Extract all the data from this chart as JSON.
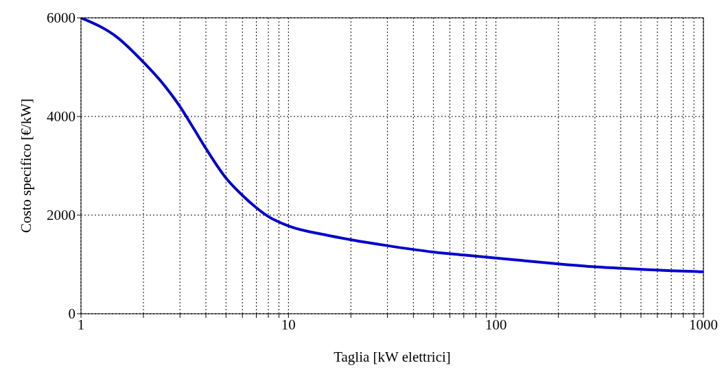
{
  "chart_data": {
    "type": "line",
    "xlabel": "Taglia [kW elettrici]",
    "ylabel": "Costo specifico [€/kW]",
    "x": [
      1,
      1.5,
      2,
      2.5,
      3,
      3.5,
      4,
      5,
      6,
      7,
      8,
      10,
      15,
      20,
      30,
      50,
      70,
      100,
      200,
      300,
      500,
      700,
      1000
    ],
    "series": [
      {
        "color": "#0000cc",
        "values": [
          6000,
          5600,
          5100,
          4650,
          4200,
          3750,
          3350,
          2750,
          2400,
          2150,
          1970,
          1780,
          1600,
          1500,
          1380,
          1250,
          1190,
          1130,
          1010,
          950,
          900,
          870,
          850
        ]
      }
    ],
    "log": "x",
    "xlim": [
      1,
      1000
    ],
    "xticks": [
      1,
      {
        "value": 2,
        "label": null
      },
      {
        "value": 3,
        "label": null
      },
      {
        "value": 4,
        "label": null
      },
      {
        "value": 5,
        "label": null
      },
      {
        "value": 6,
        "label": null
      },
      {
        "value": 7,
        "label": null
      },
      {
        "value": 8,
        "label": null
      },
      {
        "value": 9,
        "label": null
      },
      10,
      {
        "value": 20,
        "label": null
      },
      {
        "value": 30,
        "label": null
      },
      {
        "value": 40,
        "label": null
      },
      {
        "value": 50,
        "label": null
      },
      {
        "value": 60,
        "label": null
      },
      {
        "value": 70,
        "label": null
      },
      {
        "value": 80,
        "label": null
      },
      {
        "value": 90,
        "label": null
      },
      100,
      {
        "value": 200,
        "label": null
      },
      {
        "value": 300,
        "label": null
      },
      {
        "value": 400,
        "label": null
      },
      {
        "value": 500,
        "label": null
      },
      {
        "value": 600,
        "label": null
      },
      {
        "value": 700,
        "label": null
      },
      {
        "value": 800,
        "label": null
      },
      {
        "value": 900,
        "label": null
      },
      1000
    ],
    "ylim": [
      0,
      6000
    ],
    "yticks": [
      0,
      2000,
      4000,
      6000
    ],
    "grid": true,
    "marker": "none",
    "line_style": "solid"
  }
}
